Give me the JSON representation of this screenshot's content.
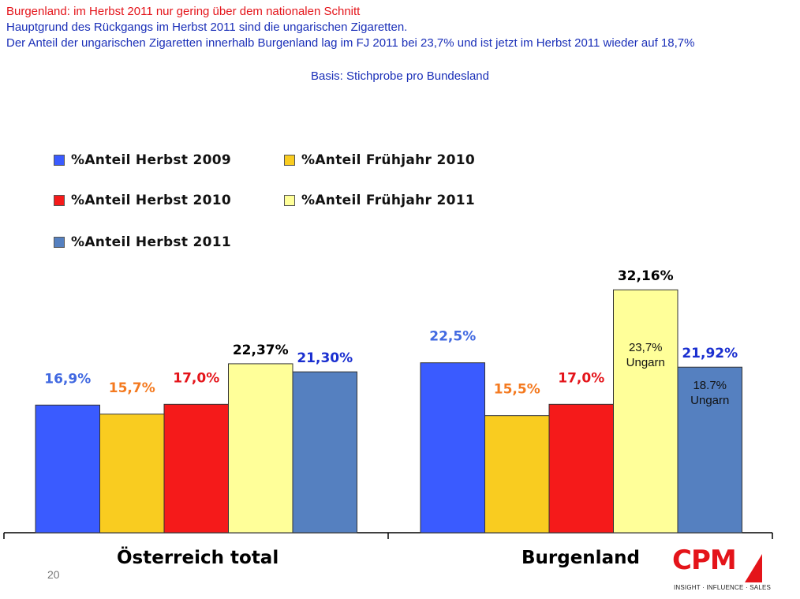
{
  "header": {
    "line1": "Burgenland: im Herbst 2011 nur gering über dem nationalen Schnitt",
    "line2": "Hauptgrund des Rückgangs im Herbst 2011 sind die ungarischen Zigaretten.",
    "line3": "Der Anteil der ungarischen Zigaretten innerhalb Burgenland lag im FJ 2011 bei 23,7% und ist jetzt im Herbst 2011 wieder auf 18,7%",
    "basis": "Basis: Stichprobe pro Bundesland"
  },
  "legend": [
    {
      "label": "%Anteil  Herbst  2009",
      "color": "#3a5bff"
    },
    {
      "label": "%Anteil  Frühjahr  2010",
      "color": "#f9cc20"
    },
    {
      "label": "%Anteil  Herbst  2010",
      "color": "#f51a1a"
    },
    {
      "label": "%Anteil  Frühjahr  2011",
      "color": "#ffff99"
    },
    {
      "label": "%Anteil  Herbst  2011",
      "color": "#5580c0"
    }
  ],
  "chart_data": {
    "type": "bar",
    "categories": [
      "Österreich total",
      "Burgenland"
    ],
    "series": [
      {
        "name": "%Anteil  Herbst  2009",
        "values": [
          16.9,
          22.5
        ],
        "labels": [
          "16,9%",
          "22,5%"
        ],
        "color": "#3a5bff",
        "label_color": "#4169e1"
      },
      {
        "name": "%Anteil  Frühjahr  2010",
        "values": [
          15.7,
          15.5
        ],
        "labels": [
          "15,7%",
          "15,5%"
        ],
        "color": "#f9cc20",
        "label_color": "#f47a20"
      },
      {
        "name": "%Anteil  Herbst  2010",
        "values": [
          17.0,
          17.0
        ],
        "labels": [
          "17,0%",
          "17,0%"
        ],
        "color": "#f51a1a",
        "label_color": "#e4141a"
      },
      {
        "name": "%Anteil  Frühjahr  2011",
        "values": [
          22.37,
          32.16
        ],
        "labels": [
          "22,37%",
          "32,16%"
        ],
        "color": "#ffff99",
        "label_color": "#000000"
      },
      {
        "name": "%Anteil  Herbst  2011",
        "values": [
          21.3,
          21.92
        ],
        "labels": [
          "21,30%",
          "21,92%"
        ],
        "color": "#5580c0",
        "label_color": "#1a2fd0"
      }
    ],
    "annotations": [
      {
        "category": "Burgenland",
        "series": "%Anteil  Frühjahr  2011",
        "text": [
          "23,7%",
          "Ungarn"
        ]
      },
      {
        "category": "Burgenland",
        "series": "%Anteil  Herbst  2011",
        "text": [
          "18.7%",
          "Ungarn"
        ]
      }
    ],
    "ylim": [
      0,
      33
    ],
    "grid": false,
    "legend_position": "top-left"
  },
  "footer": {
    "page_number": "20",
    "logo_text": "CPM",
    "logo_tagline": "INSIGHT · INFLUENCE · SALES"
  }
}
